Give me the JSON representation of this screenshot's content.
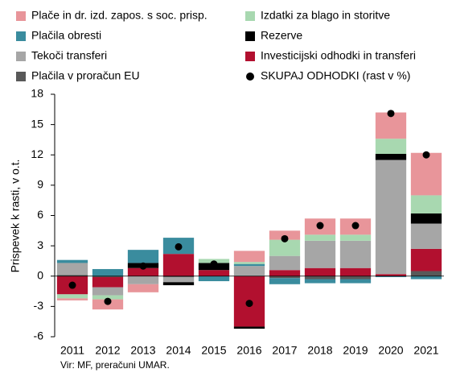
{
  "chart_data": {
    "type": "bar",
    "stacked": true,
    "y_label": "Prispevek k rasti, v o.t.",
    "source": "Vir: MF, preračuni UMAR.",
    "categories": [
      "2011",
      "2012",
      "2013",
      "2014",
      "2015",
      "2016",
      "2017",
      "2018",
      "2019",
      "2020",
      "2021"
    ],
    "ylim": [
      -6,
      18
    ],
    "yticks": [
      -6,
      -3,
      0,
      3,
      6,
      9,
      12,
      15,
      18
    ],
    "series": [
      {
        "name": "Plače in dr. izd. zapos. s soc. prisp.",
        "color": "#e8959a",
        "values": [
          -0.2,
          -1.0,
          -0.8,
          0,
          0,
          1.1,
          0.9,
          1.6,
          1.6,
          2.6,
          4.2
        ]
      },
      {
        "name": "Izdatki za blago in storitve",
        "color": "#a8d8b0",
        "values": [
          -0.4,
          -0.4,
          0,
          0,
          0.4,
          0.2,
          1.6,
          0.6,
          0.6,
          1.5,
          1.8
        ]
      },
      {
        "name": "Plačila obresti",
        "color": "#3a8c9e",
        "values": [
          0.3,
          0.7,
          1.3,
          1.6,
          -0.5,
          0.2,
          -0.6,
          -0.4,
          -0.4,
          -0.1,
          -0.3
        ]
      },
      {
        "name": "Rezerve",
        "color": "#000000",
        "values": [
          0,
          0,
          0.5,
          -0.3,
          0.7,
          -0.2,
          0,
          0,
          0,
          0.6,
          1.0
        ]
      },
      {
        "name": "Tekoči transferi",
        "color": "#a6a6a6",
        "values": [
          1.2,
          -0.8,
          -0.8,
          -0.5,
          0,
          1.0,
          1.4,
          2.7,
          2.7,
          11.3,
          2.5
        ]
      },
      {
        "name": "Investicijski odhodki in transferi",
        "color": "#b2102f",
        "values": [
          -1.8,
          -1.0,
          0.8,
          2.2,
          0.6,
          -5.0,
          0.6,
          0.8,
          0.8,
          0.2,
          2.2
        ]
      },
      {
        "name": "Plačila v proračun EU",
        "color": "#595959",
        "values": [
          0.1,
          -0.1,
          0,
          -0.1,
          0,
          0,
          -0.2,
          -0.3,
          -0.3,
          0,
          0.5
        ]
      }
    ],
    "total": {
      "name": "SKUPAJ ODHODKI (rast v %)",
      "type": "scatter",
      "color": "#000000",
      "values": [
        -0.9,
        -2.5,
        1.0,
        2.9,
        1.2,
        -2.7,
        3.7,
        5.0,
        5.0,
        16.1,
        12.0
      ]
    }
  }
}
